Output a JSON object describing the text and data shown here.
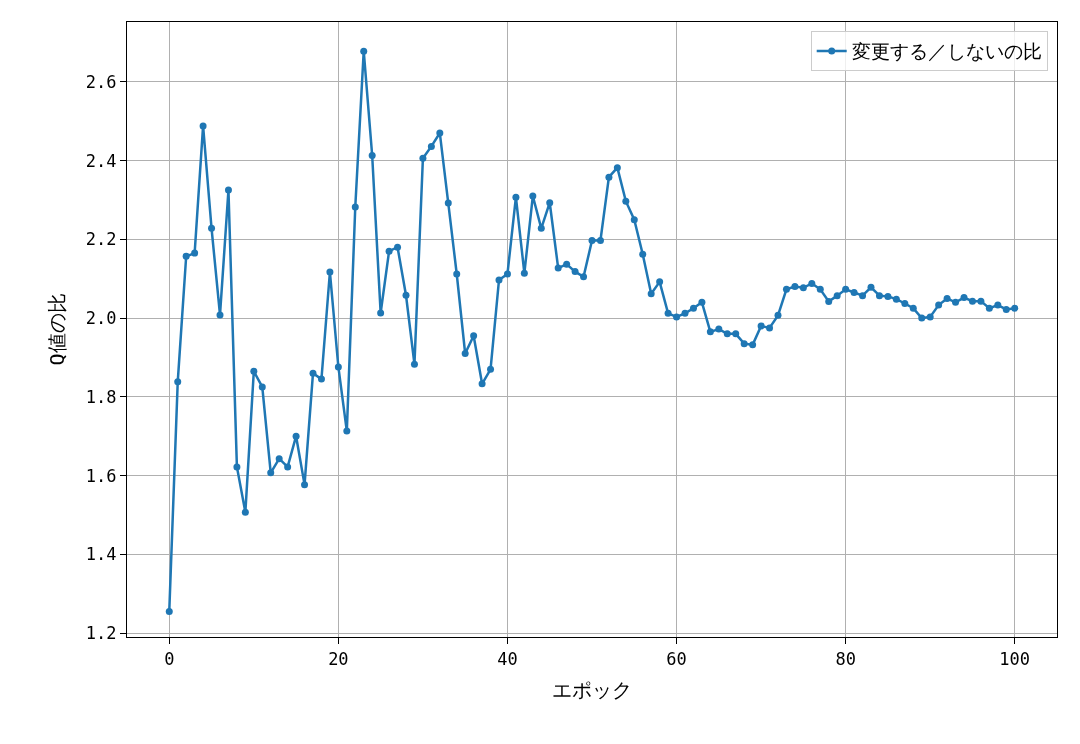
{
  "chart_data": {
    "type": "line",
    "xlabel": "エポック",
    "ylabel": "Q値の比",
    "x": [
      0,
      1,
      2,
      3,
      4,
      5,
      6,
      7,
      8,
      9,
      10,
      11,
      12,
      13,
      14,
      15,
      16,
      17,
      18,
      19,
      20,
      21,
      22,
      23,
      24,
      25,
      26,
      27,
      28,
      29,
      30,
      31,
      32,
      33,
      34,
      35,
      36,
      37,
      38,
      39,
      40,
      41,
      42,
      43,
      44,
      45,
      46,
      47,
      48,
      49,
      50,
      51,
      52,
      53,
      54,
      55,
      56,
      57,
      58,
      59,
      60,
      61,
      62,
      63,
      64,
      65,
      66,
      67,
      68,
      69,
      70,
      71,
      72,
      73,
      74,
      75,
      76,
      77,
      78,
      79,
      80,
      81,
      82,
      83,
      84,
      85,
      86,
      87,
      88,
      89,
      90,
      91,
      92,
      93,
      94,
      95,
      96,
      97,
      98,
      99,
      100
    ],
    "series": [
      {
        "name": "変更する／しないの比",
        "color": "#1f77b4",
        "values": [
          1.255,
          1.838,
          2.157,
          2.165,
          2.488,
          2.228,
          2.008,
          2.325,
          1.622,
          1.507,
          1.865,
          1.825,
          1.607,
          1.643,
          1.622,
          1.7,
          1.577,
          1.86,
          1.845,
          2.117,
          1.876,
          1.713,
          2.282,
          2.678,
          2.413,
          2.013,
          2.17,
          2.18,
          2.058,
          1.883,
          2.406,
          2.436,
          2.47,
          2.292,
          2.112,
          1.91,
          1.955,
          1.833,
          1.87,
          2.097,
          2.112,
          2.307,
          2.114,
          2.31,
          2.228,
          2.293,
          2.127,
          2.137,
          2.118,
          2.105,
          2.197,
          2.197,
          2.358,
          2.382,
          2.297,
          2.25,
          2.162,
          2.062,
          2.092,
          2.012,
          2.003,
          2.012,
          2.025,
          2.04,
          1.965,
          1.972,
          1.96,
          1.96,
          1.935,
          1.932,
          1.98,
          1.975,
          2.007,
          2.073,
          2.08,
          2.077,
          2.088,
          2.073,
          2.042,
          2.057,
          2.073,
          2.065,
          2.057,
          2.078,
          2.057,
          2.055,
          2.048,
          2.037,
          2.025,
          2.0,
          2.003,
          2.033,
          2.05,
          2.04,
          2.052,
          2.043,
          2.043,
          2.025,
          2.033,
          2.022,
          2.025
        ]
      }
    ],
    "xlim": [
      -5,
      105
    ],
    "xticks": [
      0,
      20,
      40,
      60,
      80,
      100
    ],
    "ylim": [
      1.19,
      2.752
    ],
    "yticks": [
      {
        "value": 1.2,
        "label": "1.2"
      },
      {
        "value": 1.4,
        "label": "1.4"
      },
      {
        "value": 1.6,
        "label": "1.6"
      },
      {
        "value": 1.8,
        "label": "1.8"
      },
      {
        "value": 2.0,
        "label": "2.0"
      },
      {
        "value": 2.2,
        "label": "2.2"
      },
      {
        "value": 2.4,
        "label": "2.4"
      },
      {
        "value": 2.6,
        "label": "2.6"
      }
    ],
    "grid": true,
    "legend": "top right",
    "marker": "circle",
    "line_style": "solid"
  }
}
